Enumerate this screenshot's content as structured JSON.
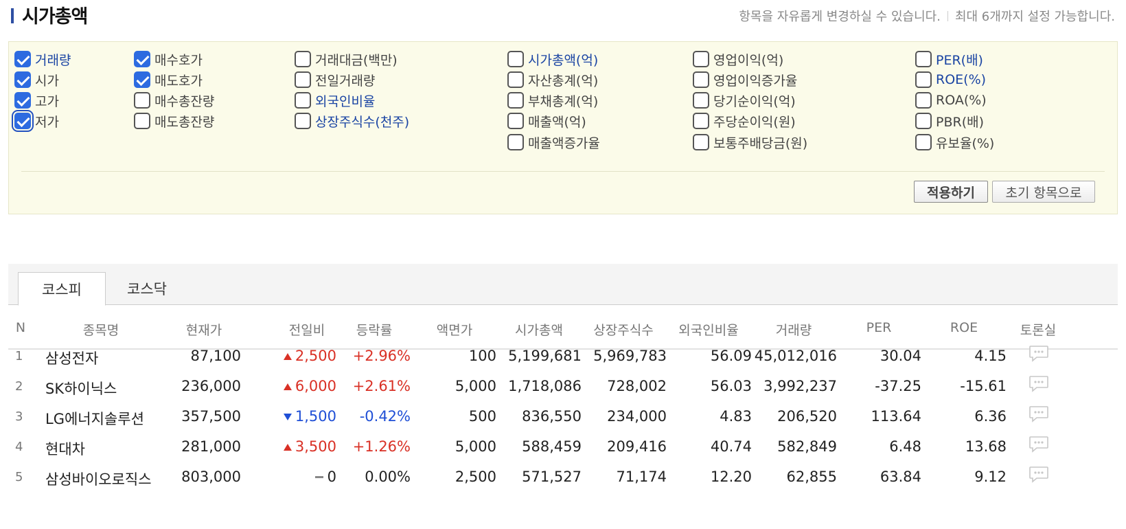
{
  "header": {
    "title": "시가총액",
    "note_left": "항목을 자유롭게 변경하실 수 있습니다.",
    "note_right": "최대 6개까지 설정 가능합니다."
  },
  "options": [
    {
      "label": "거래량",
      "checked": true,
      "blue": true
    },
    {
      "label": "시가",
      "checked": true,
      "blue": false
    },
    {
      "label": "고가",
      "checked": true,
      "blue": false
    },
    {
      "label": "저가",
      "checked": true,
      "blue": false
    },
    {
      "label": "매수호가",
      "checked": true,
      "blue": false
    },
    {
      "label": "매도호가",
      "checked": true,
      "blue": false
    },
    {
      "label": "매수총잔량",
      "checked": false,
      "blue": false
    },
    {
      "label": "매도총잔량",
      "checked": false,
      "blue": false
    },
    {
      "label": "거래대금(백만)",
      "checked": false,
      "blue": false
    },
    {
      "label": "전일거래량",
      "checked": false,
      "blue": false
    },
    {
      "label": "외국인비율",
      "checked": false,
      "blue": true
    },
    {
      "label": "상장주식수(천주)",
      "checked": false,
      "blue": true
    },
    {
      "label": "시가총액(억)",
      "checked": false,
      "blue": true
    },
    {
      "label": "자산총계(억)",
      "checked": false,
      "blue": false
    },
    {
      "label": "부채총계(억)",
      "checked": false,
      "blue": false
    },
    {
      "label": "매출액(억)",
      "checked": false,
      "blue": false
    },
    {
      "label": "매출액증가율",
      "checked": false,
      "blue": false
    },
    {
      "label": "영업이익(억)",
      "checked": false,
      "blue": false
    },
    {
      "label": "영업이익증가율",
      "checked": false,
      "blue": false
    },
    {
      "label": "당기순이익(억)",
      "checked": false,
      "blue": false
    },
    {
      "label": "주당순이익(원)",
      "checked": false,
      "blue": false
    },
    {
      "label": "보통주배당금(원)",
      "checked": false,
      "blue": false
    },
    {
      "label": "PER(배)",
      "checked": false,
      "blue": true
    },
    {
      "label": "ROE(%)",
      "checked": false,
      "blue": true
    },
    {
      "label": "ROA(%)",
      "checked": false,
      "blue": false
    },
    {
      "label": "PBR(배)",
      "checked": false,
      "blue": false
    },
    {
      "label": "유보율(%)",
      "checked": false,
      "blue": false
    }
  ],
  "buttons": {
    "apply": "적용하기",
    "reset": "초기 항목으로"
  },
  "tabs": {
    "kospi": "코스피",
    "kosdaq": "코스닥"
  },
  "columns": [
    "N",
    "종목명",
    "현재가",
    "전일비",
    "등락률",
    "액면가",
    "시가총액",
    "상장주식수",
    "외국인비율",
    "거래량",
    "PER",
    "ROE",
    "토론실"
  ],
  "rows": [
    {
      "n": "1",
      "name": "삼성전자",
      "price": "87,100",
      "dir": "up",
      "change": "2,500",
      "rate": "+2.96%",
      "face": "100",
      "cap": "5,199,681",
      "shares": "5,969,783",
      "foreign": "56.09",
      "volume": "45,012,016",
      "per": "30.04",
      "roe": "4.15"
    },
    {
      "n": "2",
      "name": "SK하이닉스",
      "price": "236,000",
      "dir": "up",
      "change": "6,000",
      "rate": "+2.61%",
      "face": "5,000",
      "cap": "1,718,086",
      "shares": "728,002",
      "foreign": "56.03",
      "volume": "3,992,237",
      "per": "-37.25",
      "roe": "-15.61"
    },
    {
      "n": "3",
      "name": "LG에너지솔루션",
      "price": "357,500",
      "dir": "down",
      "change": "1,500",
      "rate": "-0.42%",
      "face": "500",
      "cap": "836,550",
      "shares": "234,000",
      "foreign": "4.83",
      "volume": "206,520",
      "per": "113.64",
      "roe": "6.36"
    },
    {
      "n": "4",
      "name": "현대차",
      "price": "281,000",
      "dir": "up",
      "change": "3,500",
      "rate": "+1.26%",
      "face": "5,000",
      "cap": "588,459",
      "shares": "209,416",
      "foreign": "40.74",
      "volume": "582,849",
      "per": "6.48",
      "roe": "13.68"
    },
    {
      "n": "5",
      "name": "삼성바이오로직스",
      "price": "803,000",
      "dir": "flat",
      "change": "0",
      "rate": "0.00%",
      "face": "2,500",
      "cap": "571,527",
      "shares": "71,174",
      "foreign": "12.20",
      "volume": "62,855",
      "per": "63.84",
      "roe": "9.12"
    }
  ],
  "colors": {
    "accent": "#2e4fa3",
    "up": "#d93025",
    "down": "#1f4fd6",
    "checkbox": "#2d6be0",
    "panel": "#fbfbe9"
  }
}
